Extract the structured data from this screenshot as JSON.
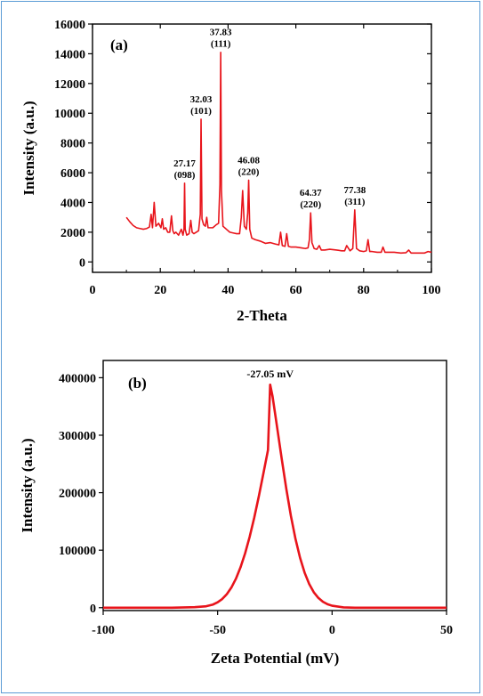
{
  "chart_data": [
    {
      "panel_label": "(a)",
      "type": "line",
      "xlabel": "2-Theta",
      "ylabel": "Intensity (a.u.)",
      "xlim": [
        0,
        100
      ],
      "ylim": [
        -700,
        16000
      ],
      "xticks": [
        0,
        20,
        40,
        60,
        80,
        100
      ],
      "yticks": [
        0,
        2000,
        4000,
        6000,
        8000,
        10000,
        12000,
        14000,
        16000
      ],
      "series": [
        {
          "color": "#e8141b",
          "x": [
            10,
            11,
            12,
            13,
            14,
            15,
            16,
            16.8,
            17.3,
            17.7,
            18.2,
            18.7,
            19.5,
            20.2,
            20.6,
            21.0,
            21.6,
            22.2,
            22.8,
            23.3,
            23.7,
            24.1,
            24.6,
            25.4,
            26.2,
            26.7,
            27.0,
            27.17,
            27.35,
            27.8,
            28.5,
            29.0,
            29.4,
            29.9,
            30.6,
            31.3,
            31.8,
            32.03,
            32.3,
            32.8,
            33.3,
            33.7,
            34.1,
            34.6,
            35.5,
            36.5,
            37.2,
            37.6,
            37.83,
            38.05,
            38.5,
            39.5,
            40.5,
            41.5,
            42.5,
            43.4,
            43.9,
            44.3,
            44.8,
            45.4,
            45.8,
            46.08,
            46.4,
            47.0,
            48.0,
            49.5,
            51.0,
            52.5,
            54.0,
            55.0,
            55.5,
            56.0,
            56.8,
            57.3,
            57.8,
            58.6,
            60.0,
            61.5,
            62.8,
            63.6,
            64.0,
            64.37,
            64.75,
            65.4,
            66.2,
            66.9,
            67.5,
            68.5,
            70.0,
            72.0,
            73.5,
            74.4,
            75.0,
            76.0,
            76.8,
            77.38,
            77.9,
            78.8,
            80.0,
            80.8,
            81.3,
            81.8,
            82.5,
            84.0,
            85.2,
            85.7,
            86.3,
            87.5,
            89.0,
            91.0,
            92.5,
            93.3,
            94.0,
            96.0,
            98.0,
            99.0,
            100
          ],
          "values": [
            3000,
            2700,
            2450,
            2300,
            2250,
            2200,
            2250,
            2350,
            3200,
            2300,
            4000,
            2400,
            2600,
            2300,
            2900,
            2200,
            2300,
            2000,
            2000,
            3100,
            2100,
            1900,
            2000,
            1800,
            2200,
            1800,
            2200,
            5300,
            2200,
            1800,
            1900,
            2800,
            2000,
            1900,
            2000,
            2100,
            3200,
            9600,
            2900,
            2500,
            2400,
            3000,
            2300,
            2300,
            2300,
            2500,
            2600,
            5200,
            14100,
            4800,
            2400,
            2200,
            2000,
            1950,
            1900,
            1900,
            3000,
            4800,
            2400,
            2200,
            3300,
            5500,
            2200,
            1600,
            1500,
            1400,
            1250,
            1300,
            1200,
            1150,
            2000,
            1100,
            1050,
            1900,
            1050,
            1000,
            1000,
            950,
            900,
            950,
            1500,
            3300,
            1300,
            900,
            850,
            1100,
            800,
            800,
            850,
            800,
            750,
            750,
            1100,
            750,
            900,
            3500,
            900,
            750,
            700,
            750,
            1500,
            700,
            700,
            650,
            650,
            1000,
            650,
            650,
            650,
            600,
            620,
            800,
            600,
            600,
            600,
            700,
            650
          ]
        }
      ],
      "annotations": [
        {
          "x": 27.17,
          "y": 5300,
          "value": "27.17",
          "hkl": "(098)"
        },
        {
          "x": 32.03,
          "y": 9600,
          "value": "32.03",
          "hkl": "(101)"
        },
        {
          "x": 37.83,
          "y": 14100,
          "value": "37.83",
          "hkl": "(111)"
        },
        {
          "x": 46.08,
          "y": 5500,
          "value": "46.08",
          "hkl": "(220)"
        },
        {
          "x": 64.37,
          "y": 3300,
          "value": "64.37",
          "hkl": "(220)"
        },
        {
          "x": 77.38,
          "y": 3500,
          "value": "77.38",
          "hkl": "(311)"
        }
      ]
    },
    {
      "panel_label": "(b)",
      "type": "line",
      "xlabel": "Zeta Potential (mV)",
      "ylabel": "Intensity (a.u.)",
      "xlim": [
        -100,
        50
      ],
      "ylim": [
        -5000,
        430000
      ],
      "xticks": [
        -100,
        -50,
        0,
        50
      ],
      "yticks": [
        0,
        100000,
        200000,
        300000,
        400000
      ],
      "peak": {
        "x": -27.05,
        "y": 388000,
        "sigma_left": 8.3,
        "sigma_right": 6.3
      },
      "series": [
        {
          "color": "#e8141b",
          "x": [
            -100,
            -90,
            -80,
            -70,
            -60,
            -55,
            -52,
            -50,
            -48,
            -46,
            -44,
            -42,
            -40,
            -38,
            -36,
            -34,
            -32,
            -30,
            -28,
            -27.05,
            -26,
            -24,
            -22,
            -20,
            -18,
            -16,
            -14,
            -12,
            -10,
            -8,
            -6,
            -4,
            -2,
            0,
            5,
            10,
            20,
            30,
            40,
            50
          ],
          "values": [
            0,
            0,
            0,
            0,
            900,
            2500,
            5500,
            9400,
            15100,
            23400,
            35000,
            50400,
            70200,
            94500,
            123400,
            156700,
            193800,
            233500,
            274200,
            388000,
            367400,
            313500,
            258800,
            206700,
            159900,
            119900,
            86900,
            60900,
            41200,
            26900,
            17000,
            10300,
            6000,
            3400,
            500,
            0,
            0,
            0,
            0,
            0
          ]
        }
      ],
      "annotations": [
        {
          "x": -27.05,
          "y": 388000,
          "label": "-27.05 mV"
        }
      ]
    }
  ]
}
